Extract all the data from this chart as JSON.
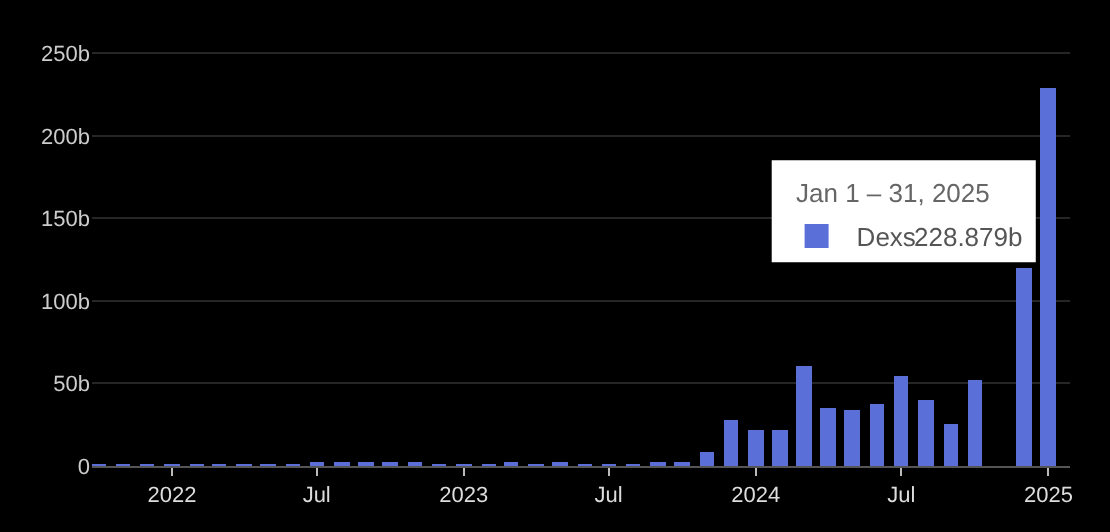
{
  "chart_data": {
    "type": "bar",
    "x": [
      "2021-10",
      "2021-11",
      "2021-12",
      "2022-01",
      "2022-02",
      "2022-03",
      "2022-04",
      "2022-05",
      "2022-06",
      "2022-07",
      "2022-08",
      "2022-09",
      "2022-10",
      "2022-11",
      "2022-12",
      "2023-01",
      "2023-02",
      "2023-03",
      "2023-04",
      "2023-05",
      "2023-06",
      "2023-07",
      "2023-08",
      "2023-09",
      "2023-10",
      "2023-11",
      "2023-12",
      "2024-01",
      "2024-02",
      "2024-03",
      "2024-04",
      "2024-05",
      "2024-06",
      "2024-07",
      "2024-08",
      "2024-09",
      "2024-10",
      "2024-11",
      "2024-12",
      "2025-01"
    ],
    "series": [
      {
        "name": "Dexs",
        "color": "#5b6fd8",
        "values": [
          0.3,
          0.3,
          0.3,
          0.3,
          0.3,
          0.5,
          0.5,
          1,
          1,
          1.5,
          1.5,
          1.5,
          1.5,
          2.5,
          1,
          1,
          1,
          2.5,
          1,
          1.5,
          1,
          1,
          1,
          1.5,
          2.5,
          8,
          28,
          22,
          22,
          60,
          35,
          34,
          38,
          55,
          40,
          25,
          52,
          null,
          120,
          228.879
        ]
      }
    ],
    "annotations": [
      "Jan 1 – 31, 2025",
      "228.879b"
    ],
    "xlim": [
      "2021-09-23",
      "2025-01-28"
    ],
    "xticks": [
      {
        "value": "2022-01",
        "label": "2022"
      },
      {
        "value": "2022-07",
        "label": "Jul"
      },
      {
        "value": "2023-01",
        "label": "2023"
      },
      {
        "value": "2023-07",
        "label": "Jul"
      },
      {
        "value": "2024-01",
        "label": "2024"
      },
      {
        "value": "2024-07",
        "label": "Jul"
      },
      {
        "value": "2025-01",
        "label": "2025"
      }
    ],
    "ylim": [
      0,
      252
    ],
    "yticks": [
      0,
      {
        "value": 50,
        "label": "50b"
      },
      {
        "value": 100,
        "label": "100b"
      },
      {
        "value": 150,
        "label": "150b"
      },
      {
        "value": 200,
        "label": "200b"
      },
      {
        "value": 250,
        "label": "250b"
      }
    ],
    "grid": "y",
    "legend": "top right"
  }
}
